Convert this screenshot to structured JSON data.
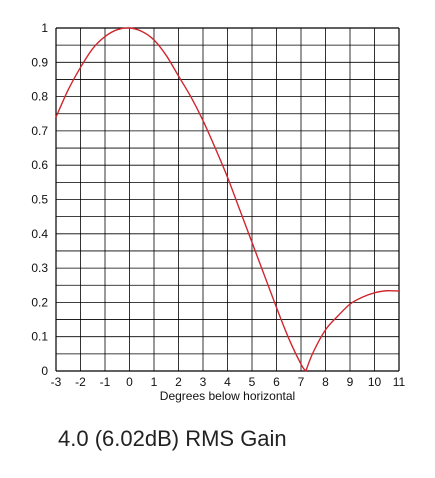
{
  "caption": "4.0 (6.02dB) RMS Gain",
  "chart_data": {
    "type": "line",
    "title": "",
    "xlabel": "Degrees below horizontal",
    "ylabel": "",
    "xlim": [
      -3,
      11
    ],
    "ylim": [
      0,
      1
    ],
    "x_ticks": [
      "-3",
      "-2",
      "-1",
      "0",
      "1",
      "2",
      "3",
      "4",
      "5",
      "6",
      "7",
      "8",
      "9",
      "10",
      "11"
    ],
    "x_tick_values": [
      -3,
      -2,
      -1,
      0,
      1,
      2,
      3,
      4,
      5,
      6,
      7,
      8,
      9,
      10,
      11
    ],
    "y_ticks": [
      "0",
      "0.1",
      "0.2",
      "0.3",
      "0.4",
      "0.5",
      "0.6",
      "0.7",
      "0.8",
      "0.9",
      "1"
    ],
    "y_tick_values": [
      0,
      0.1,
      0.2,
      0.3,
      0.4,
      0.5,
      0.6,
      0.7,
      0.8,
      0.9,
      1.0
    ],
    "grid": true,
    "grid_x_step": 1,
    "grid_y_step": 0.05,
    "line_color": "#d0262e",
    "grid_color": "#000000",
    "series": [
      {
        "x": [
          -3,
          -2.5,
          -2,
          -1.5,
          -1,
          -0.5,
          0,
          0.5,
          1,
          1.5,
          2,
          2.5,
          3,
          3.5,
          4,
          4.5,
          5,
          5.5,
          6,
          6.5,
          7,
          7.2,
          7.5,
          8,
          8.5,
          9,
          9.5,
          10,
          10.5,
          11
        ],
        "y": [
          0.74,
          0.82,
          0.885,
          0.94,
          0.975,
          0.995,
          1.0,
          0.99,
          0.965,
          0.92,
          0.86,
          0.8,
          0.73,
          0.65,
          0.565,
          0.47,
          0.375,
          0.28,
          0.185,
          0.095,
          0.02,
          0.0,
          0.055,
          0.12,
          0.16,
          0.195,
          0.215,
          0.228,
          0.234,
          0.233
        ]
      }
    ]
  }
}
